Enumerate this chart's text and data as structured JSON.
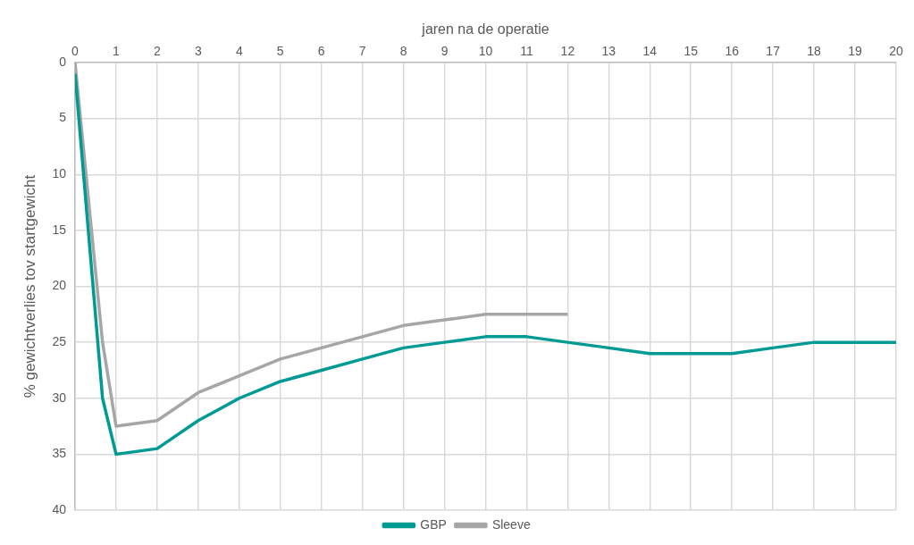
{
  "chart_data": {
    "type": "line",
    "xlabel": "jaren na de operatie",
    "ylabel": "% gewichtverlies tov startgewicht",
    "xlim": [
      0,
      20
    ],
    "xticks": [
      0,
      1,
      2,
      3,
      4,
      5,
      6,
      7,
      8,
      9,
      10,
      11,
      12,
      13,
      14,
      15,
      16,
      17,
      18,
      19,
      20
    ],
    "ylim": [
      40,
      0
    ],
    "yticks": [
      0,
      5,
      10,
      15,
      20,
      25,
      30,
      35,
      40
    ],
    "grid": true,
    "legend": "bottom",
    "marker": "none",
    "line_style": "solid",
    "series": [
      {
        "name": "GBP",
        "color": "#009a95",
        "x": [
          0,
          0.67,
          1,
          2,
          3,
          4,
          5,
          6,
          7,
          8,
          9,
          10,
          11,
          12,
          13,
          14,
          15,
          16,
          17,
          18,
          19,
          20
        ],
        "values": [
          1,
          30,
          35,
          34.5,
          32,
          30,
          28.5,
          27.5,
          26.5,
          25.5,
          25,
          24.5,
          24.5,
          25,
          25.5,
          26,
          26,
          26,
          25.5,
          25,
          25,
          25
        ]
      },
      {
        "name": "Sleeve",
        "color": "#a6a6a6",
        "x": [
          0,
          0.67,
          1,
          2,
          3,
          4,
          5,
          6,
          7,
          8,
          9,
          10,
          11,
          12
        ],
        "values": [
          0,
          25,
          32.5,
          32,
          29.5,
          28,
          26.5,
          25.5,
          24.5,
          23.5,
          23,
          22.5,
          22.5,
          22.5
        ]
      }
    ]
  }
}
